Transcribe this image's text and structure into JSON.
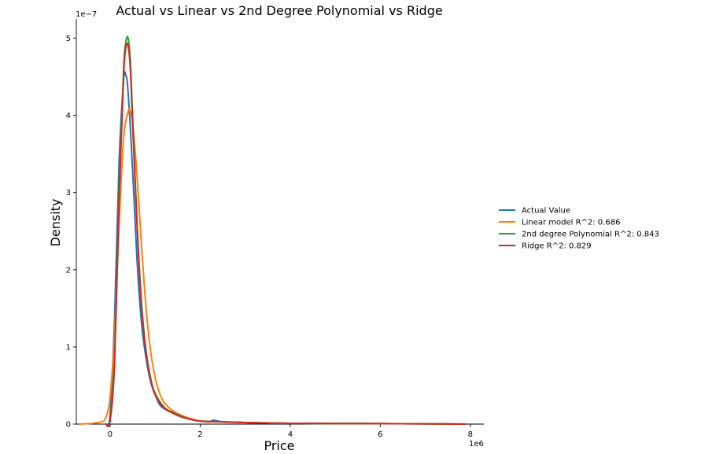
{
  "chart_data": {
    "type": "line",
    "title": "Actual vs Linear vs 2nd Degree Polynomial vs Ridge",
    "xlabel": "Price",
    "ylabel": "Density",
    "x_offset_label": "1e6",
    "y_offset_label": "1e−7",
    "xlim": [
      -0.75,
      8.3
    ],
    "ylim": [
      0,
      5.25
    ],
    "x_ticks": [
      0,
      2,
      4,
      6,
      8
    ],
    "y_ticks": [
      0,
      1,
      2,
      3,
      4,
      5
    ],
    "x_tick_labels": [
      "0",
      "2",
      "4",
      "6",
      "8"
    ],
    "y_tick_labels": [
      "0",
      "1",
      "2",
      "3",
      "4",
      "5"
    ],
    "legend_position": "right",
    "grid": false,
    "series": [
      {
        "name": "Actual Value",
        "color": "#1f77b4",
        "x": [
          -0.1,
          0.0,
          0.1,
          0.2,
          0.3,
          0.35,
          0.4,
          0.5,
          0.6,
          0.7,
          0.8,
          0.9,
          1.0,
          1.1,
          1.2,
          1.4,
          1.6,
          1.8,
          2.0,
          2.2,
          2.3,
          2.5,
          3.0,
          3.5,
          4.0,
          5.0,
          6.0,
          7.0,
          7.9
        ],
        "y": [
          0.0,
          0.12,
          1.4,
          3.4,
          4.45,
          4.52,
          4.3,
          3.3,
          2.1,
          1.3,
          0.85,
          0.55,
          0.38,
          0.25,
          0.2,
          0.15,
          0.1,
          0.06,
          0.04,
          0.03,
          0.05,
          0.03,
          0.02,
          0.015,
          0.01,
          0.008,
          0.006,
          0.004,
          0.0
        ]
      },
      {
        "name": "Linear model R^2: 0.686",
        "color": "#ff7f0e",
        "x": [
          -0.7,
          -0.4,
          -0.2,
          -0.1,
          0.0,
          0.1,
          0.2,
          0.3,
          0.4,
          0.45,
          0.5,
          0.6,
          0.7,
          0.8,
          0.9,
          1.0,
          1.1,
          1.2,
          1.4,
          1.6,
          1.8,
          2.0,
          2.3,
          2.6,
          3.0,
          4.0,
          5.0,
          6.0,
          7.0,
          7.9
        ],
        "y": [
          0.0,
          0.01,
          0.03,
          0.08,
          0.35,
          1.2,
          2.6,
          3.7,
          4.05,
          4.05,
          3.9,
          3.2,
          2.3,
          1.5,
          0.95,
          0.6,
          0.4,
          0.28,
          0.17,
          0.11,
          0.07,
          0.04,
          0.03,
          0.03,
          0.02,
          0.01,
          0.008,
          0.006,
          0.004,
          0.0
        ]
      },
      {
        "name": "2nd degree Polynomial R^2: 0.843",
        "color": "#2ca02c",
        "x": [
          -0.1,
          0.0,
          0.1,
          0.2,
          0.3,
          0.35,
          0.4,
          0.45,
          0.5,
          0.6,
          0.7,
          0.8,
          0.9,
          1.0,
          1.2,
          1.4,
          1.6,
          1.8,
          2.0,
          2.5,
          3.0,
          3.5,
          4.0,
          5.0,
          6.0,
          7.0,
          7.9
        ],
        "y": [
          0.0,
          0.05,
          0.9,
          3.0,
          4.6,
          4.95,
          5.0,
          4.7,
          4.0,
          2.6,
          1.55,
          0.95,
          0.6,
          0.4,
          0.22,
          0.15,
          0.1,
          0.06,
          0.04,
          0.03,
          0.02,
          0.015,
          0.01,
          0.008,
          0.006,
          0.004,
          0.0
        ]
      },
      {
        "name": "Ridge R^2:  0.829",
        "color": "#d62728",
        "x": [
          -0.1,
          0.0,
          0.1,
          0.2,
          0.3,
          0.35,
          0.4,
          0.45,
          0.5,
          0.6,
          0.7,
          0.8,
          0.9,
          1.0,
          1.2,
          1.4,
          1.6,
          1.8,
          2.0,
          2.5,
          3.0,
          3.5,
          4.0,
          5.0,
          6.0,
          7.0,
          7.9
        ],
        "y": [
          0.0,
          0.04,
          0.8,
          2.9,
          4.5,
          4.88,
          4.9,
          4.6,
          3.9,
          2.55,
          1.5,
          0.92,
          0.58,
          0.38,
          0.21,
          0.14,
          0.09,
          0.06,
          0.04,
          0.03,
          0.02,
          0.015,
          0.01,
          0.008,
          0.006,
          0.004,
          0.0
        ]
      }
    ]
  }
}
